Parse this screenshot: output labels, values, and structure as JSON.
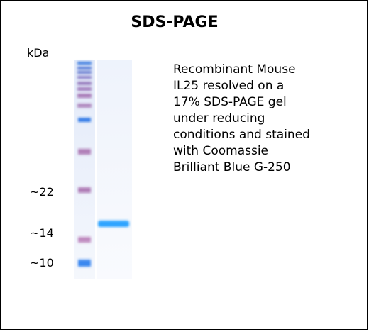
{
  "title": "SDS-PAGE",
  "unit_label": "kDa",
  "markers": [
    "~22",
    "~14",
    "~10"
  ],
  "caption": [
    "Recombinant Mouse",
    "IL25 resolved on a",
    "17% SDS-PAGE gel",
    "under reducing",
    "conditions and stained",
    "with Coomassie",
    "Brilliant Blue G-250"
  ]
}
